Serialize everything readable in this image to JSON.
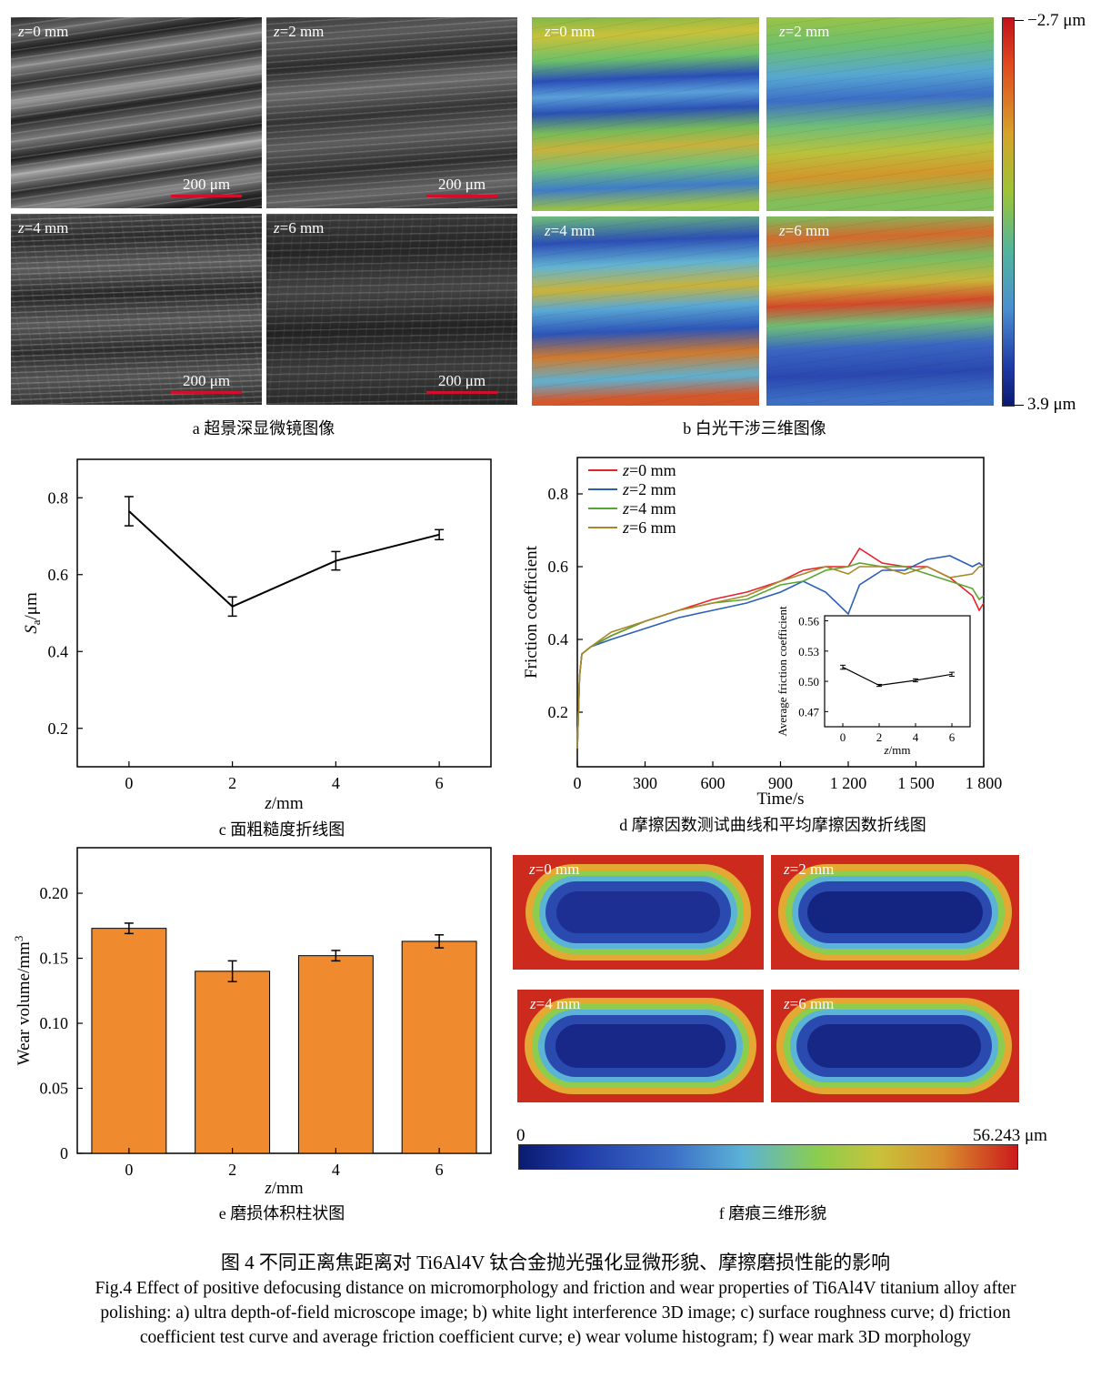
{
  "panel_a": {
    "tiles": [
      {
        "label_var": "z",
        "label_rest": "=0 mm",
        "scale": "200 μm"
      },
      {
        "label_var": "z",
        "label_rest": "=2 mm",
        "scale": "200 μm"
      },
      {
        "label_var": "z",
        "label_rest": "=4 mm",
        "scale": "200 μm"
      },
      {
        "label_var": "z",
        "label_rest": "=6 mm",
        "scale": "200 μm"
      }
    ],
    "caption": "a  超景深显微镜图像"
  },
  "panel_b": {
    "tiles": [
      {
        "label_var": "z",
        "label_rest": "=0 mm"
      },
      {
        "label_var": "z",
        "label_rest": "=2 mm"
      },
      {
        "label_var": "z",
        "label_rest": "=4 mm"
      },
      {
        "label_var": "z",
        "label_rest": "=6 mm"
      }
    ],
    "colorbar_top": "−2.7 μm",
    "colorbar_bottom": "3.9 μm",
    "caption": "b  白光干涉三维图像"
  },
  "panel_f": {
    "tiles": [
      {
        "label_var": "z",
        "label_rest": "=0 mm"
      },
      {
        "label_var": "z",
        "label_rest": "=2 mm"
      },
      {
        "label_var": "z",
        "label_rest": "=4 mm"
      },
      {
        "label_var": "z",
        "label_rest": "=6 mm"
      }
    ],
    "colorbar_min": "0",
    "colorbar_max": "56.243 μm",
    "caption": "f  磨痕三维形貌"
  },
  "colors": {
    "accent_bar": "#f08a2e",
    "curve_z0": "#e8222a",
    "curve_z2": "#2a5fb8",
    "curve_z4": "#5aa531",
    "curve_z6": "#a8882a"
  },
  "chart_data": [
    {
      "id": "c",
      "type": "line",
      "x": [
        0,
        2,
        4,
        6
      ],
      "values": [
        0.765,
        0.517,
        0.636,
        0.704
      ],
      "errors": [
        0.038,
        0.025,
        0.024,
        0.013
      ],
      "xlabel_var": "z",
      "xlabel_rest": "/mm",
      "ylabel_var": "S",
      "ylabel_sub": "a",
      "ylabel_rest": "/μm",
      "xlim": [
        -1,
        7
      ],
      "ylim": [
        0.1,
        0.9
      ],
      "xticks": [
        "0",
        "2",
        "4",
        "6"
      ],
      "yticks": [
        "0.2",
        "0.4",
        "0.6",
        "0.8"
      ],
      "caption": "c  面粗糙度折线图"
    },
    {
      "id": "d",
      "type": "line",
      "xlabel": "Time/s",
      "ylabel": "Friction coefficient",
      "xlim": [
        0,
        1800
      ],
      "ylim": [
        0.05,
        0.9
      ],
      "xticks": [
        "0",
        "300",
        "600",
        "900",
        "1 200",
        "1 500",
        "1 800"
      ],
      "yticks": [
        "0.2",
        "0.4",
        "0.6",
        "0.8"
      ],
      "legend_position": "top-left",
      "series": [
        {
          "name_var": "z",
          "name_rest": "=0 mm",
          "x": [
            0,
            10,
            20,
            60,
            150,
            300,
            450,
            600,
            750,
            900,
            1000,
            1100,
            1200,
            1250,
            1350,
            1450,
            1550,
            1650,
            1750,
            1780,
            1800
          ],
          "values": [
            0.1,
            0.3,
            0.36,
            0.38,
            0.41,
            0.45,
            0.48,
            0.51,
            0.53,
            0.56,
            0.59,
            0.6,
            0.6,
            0.65,
            0.61,
            0.6,
            0.6,
            0.57,
            0.52,
            0.48,
            0.5
          ]
        },
        {
          "name_var": "z",
          "name_rest": "=2 mm",
          "x": [
            0,
            10,
            20,
            60,
            150,
            300,
            450,
            600,
            750,
            900,
            1000,
            1100,
            1200,
            1250,
            1350,
            1450,
            1550,
            1650,
            1750,
            1780,
            1800
          ],
          "values": [
            0.1,
            0.3,
            0.36,
            0.38,
            0.4,
            0.43,
            0.46,
            0.48,
            0.5,
            0.53,
            0.56,
            0.53,
            0.47,
            0.55,
            0.59,
            0.59,
            0.62,
            0.63,
            0.6,
            0.61,
            0.6
          ]
        },
        {
          "name_var": "z",
          "name_rest": "=4 mm",
          "x": [
            0,
            10,
            20,
            60,
            150,
            300,
            450,
            600,
            750,
            900,
            1000,
            1100,
            1200,
            1250,
            1350,
            1450,
            1550,
            1650,
            1750,
            1780,
            1800
          ],
          "values": [
            0.1,
            0.3,
            0.36,
            0.38,
            0.41,
            0.45,
            0.48,
            0.5,
            0.51,
            0.55,
            0.56,
            0.59,
            0.6,
            0.61,
            0.6,
            0.6,
            0.58,
            0.56,
            0.54,
            0.51,
            0.52
          ]
        },
        {
          "name_var": "z",
          "name_rest": "=6 mm",
          "x": [
            0,
            10,
            20,
            60,
            150,
            300,
            450,
            600,
            750,
            900,
            1000,
            1100,
            1200,
            1250,
            1350,
            1450,
            1550,
            1650,
            1750,
            1780,
            1800
          ],
          "values": [
            0.1,
            0.3,
            0.36,
            0.38,
            0.42,
            0.45,
            0.48,
            0.5,
            0.52,
            0.56,
            0.58,
            0.6,
            0.58,
            0.6,
            0.6,
            0.58,
            0.6,
            0.57,
            0.58,
            0.6,
            0.6
          ]
        }
      ],
      "inset": {
        "type": "line",
        "x": [
          0,
          2,
          4,
          6
        ],
        "values": [
          0.514,
          0.496,
          0.501,
          0.507
        ],
        "errors": [
          0.002,
          0.001,
          0.0015,
          0.002
        ],
        "ylabel": "Average friction coefficient",
        "xlabel_var": "z",
        "xlabel_rest": "/mm",
        "xlim": [
          -1,
          7
        ],
        "ylim": [
          0.455,
          0.565
        ],
        "xticks": [
          "0",
          "2",
          "4",
          "6"
        ],
        "yticks": [
          "0.47",
          "0.50",
          "0.53",
          "0.56"
        ]
      },
      "caption": "d  摩擦因数测试曲线和平均摩擦因数折线图"
    },
    {
      "id": "e",
      "type": "bar",
      "categories": [
        "0",
        "2",
        "4",
        "6"
      ],
      "values": [
        0.173,
        0.14,
        0.152,
        0.163
      ],
      "errors": [
        0.004,
        0.008,
        0.004,
        0.005
      ],
      "xlabel_var": "z",
      "xlabel_rest": "/mm",
      "ylabel": "Wear volume/mm",
      "ylabel_sup": "3",
      "ylim": [
        0,
        0.235
      ],
      "yticks": [
        "0",
        "0.05",
        "0.10",
        "0.15",
        "0.20"
      ],
      "caption": "e  磨损体积柱状图"
    }
  ],
  "figure": {
    "title": "图 4    不同正离焦距离对 Ti6Al4V 钛合金抛光强化显微形貌、摩擦磨损性能的影响",
    "english": "Fig.4 Effect of positive defocusing distance on micromorphology and friction and wear properties of Ti6Al4V titanium alloy after polishing: a) ultra depth-of-field microscope image; b) white light interference 3D image; c) surface roughness curve; d) friction coefficient test curve and average friction coefficient curve; e) wear volume histogram; f) wear mark 3D morphology"
  }
}
